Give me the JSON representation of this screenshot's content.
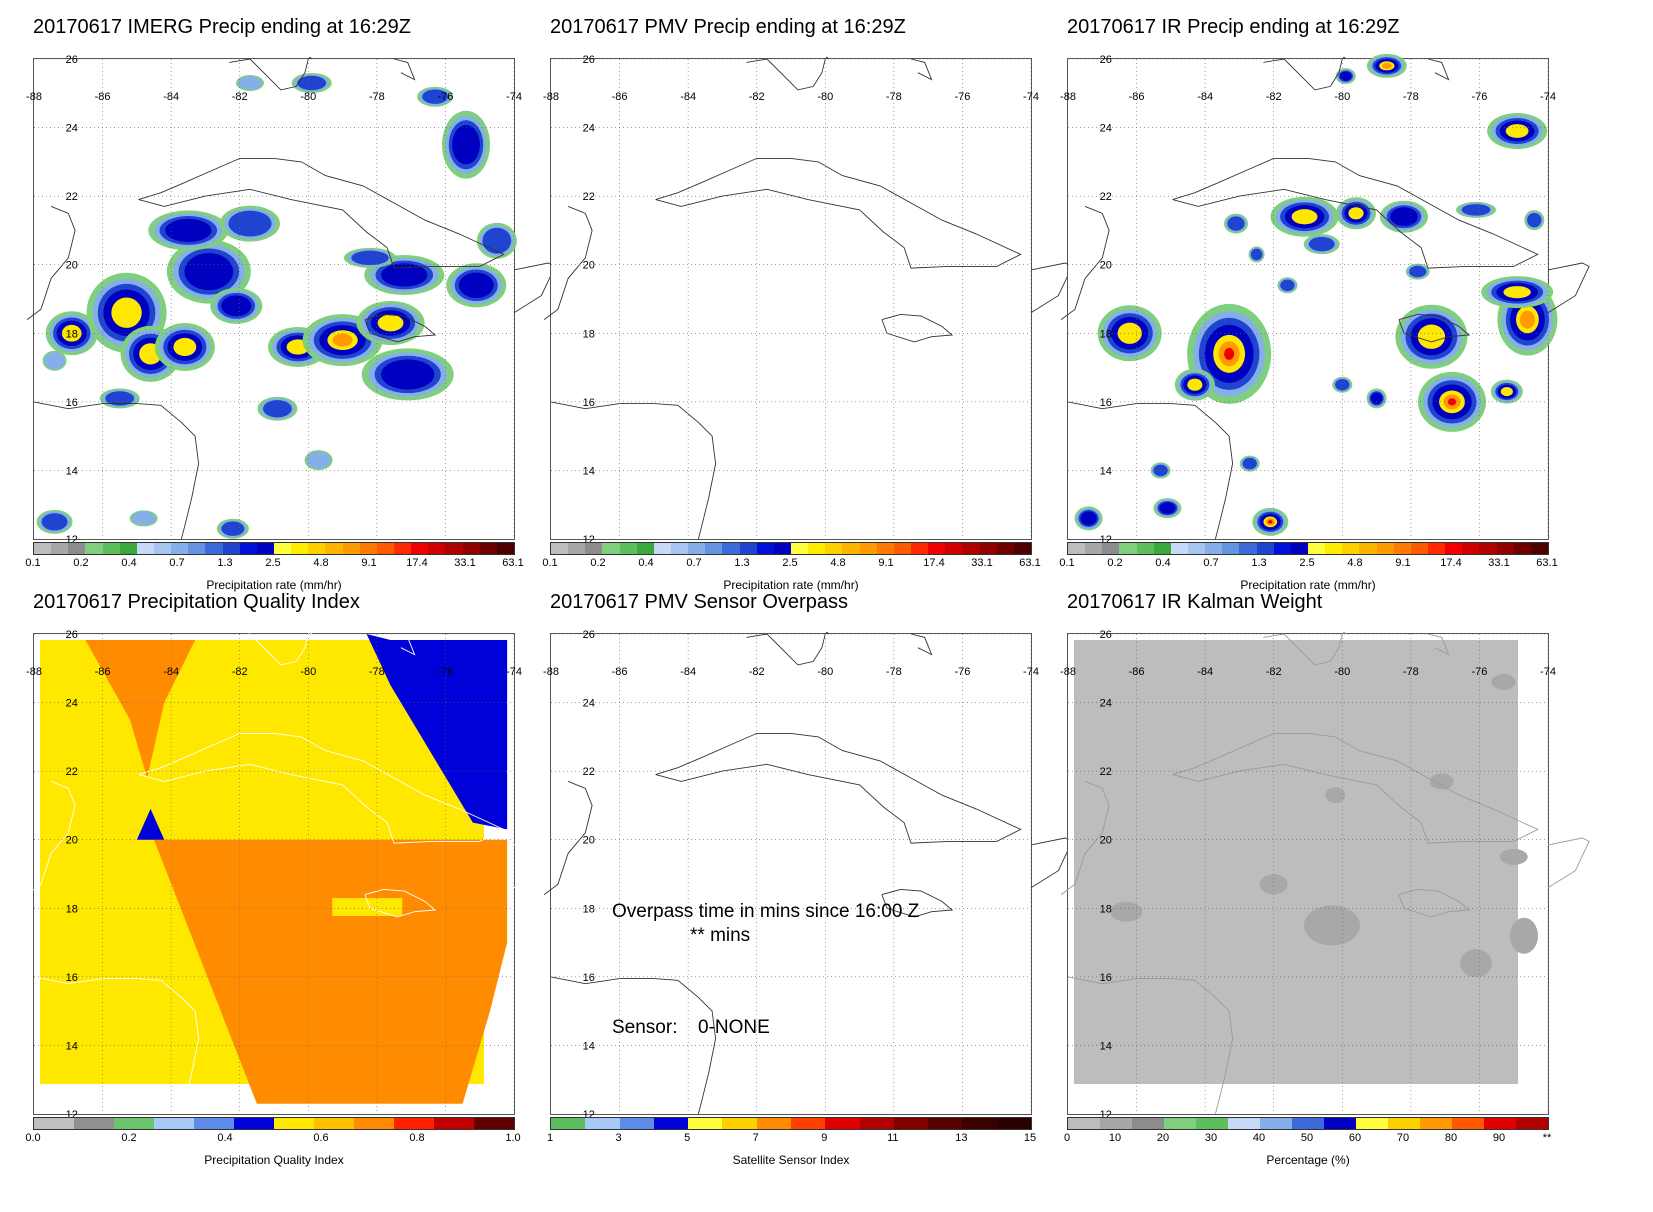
{
  "panels": [
    {
      "id": "p1",
      "title": "20170617 IMERG Precip ending at 16:29Z",
      "colorbar_label": "Precipitation rate (mm/hr)",
      "colorbar_ticks": [
        "0.1",
        "0.2",
        "0.4",
        "0.7",
        "1.3",
        "2.5",
        "4.8",
        "9.1",
        "17.4",
        "33.1",
        "63.1"
      ],
      "scale": "precip"
    },
    {
      "id": "p2",
      "title": "20170617 PMV Precip ending at 16:29Z",
      "colorbar_label": "Precipitation rate (mm/hr)",
      "colorbar_ticks": [
        "0.1",
        "0.2",
        "0.4",
        "0.7",
        "1.3",
        "2.5",
        "4.8",
        "9.1",
        "17.4",
        "33.1",
        "63.1"
      ],
      "scale": "precip"
    },
    {
      "id": "p3",
      "title": "20170617 IR Precip ending at 16:29Z",
      "colorbar_label": "Precipitation rate (mm/hr)",
      "colorbar_ticks": [
        "0.1",
        "0.2",
        "0.4",
        "0.7",
        "1.3",
        "2.5",
        "4.8",
        "9.1",
        "17.4",
        "33.1",
        "63.1"
      ],
      "scale": "precip"
    },
    {
      "id": "p4",
      "title": "20170617 Precipitation Quality Index",
      "colorbar_label": "Precipitation Quality Index",
      "colorbar_ticks": [
        "0.0",
        "0.2",
        "0.4",
        "0.6",
        "0.8",
        "1.0"
      ],
      "scale": "quality"
    },
    {
      "id": "p5",
      "title": "20170617 PMV Sensor Overpass",
      "colorbar_label": "Satellite Sensor Index",
      "colorbar_ticks": [
        "1",
        "3",
        "5",
        "7",
        "9",
        "11",
        "13",
        "15"
      ],
      "scale": "sensor",
      "overpass_text": "Overpass time in mins since 16:00 Z",
      "overpass_value": "** mins",
      "sensor_label": "Sensor:",
      "sensor_value": "0-NONE"
    },
    {
      "id": "p6",
      "title": "20170617 IR Kalman Weight",
      "colorbar_label": "Percentage (%)",
      "colorbar_ticks": [
        "0",
        "10",
        "20",
        "30",
        "40",
        "50",
        "60",
        "70",
        "80",
        "90",
        "**"
      ],
      "scale": "percent"
    }
  ],
  "axes": {
    "lon_labels": [
      "-88",
      "-86",
      "-84",
      "-82",
      "-80",
      "-78",
      "-76",
      "-74"
    ],
    "lat_labels": [
      "26",
      "24",
      "22",
      "20",
      "18",
      "16",
      "14",
      "12"
    ],
    "lon_range": [
      -88,
      -74
    ],
    "lat_range": [
      12,
      26
    ]
  },
  "colors": {
    "precip": [
      "#bdbdbd",
      "#a6a6a6",
      "#8c8c8c",
      "#7fcf7f",
      "#5cbf5c",
      "#3aa83a",
      "#c8d8f8",
      "#a8c4f0",
      "#86aee8",
      "#6494e0",
      "#3c6ad8",
      "#1e44d0",
      "#0010d8",
      "#0000c0",
      "#ffff40",
      "#ffec00",
      "#ffd000",
      "#ffb400",
      "#ff9a00",
      "#ff7a00",
      "#ff5a00",
      "#ff2a00",
      "#f00000",
      "#d00000",
      "#b00000",
      "#900000",
      "#6e0000",
      "#4e0000"
    ],
    "quality": [
      "#c0c0c0",
      "#909090",
      "#6cc46c",
      "#a8c8f8",
      "#5c8ce8",
      "#0000d8",
      "#ffe800",
      "#ffc000",
      "#ff8c00",
      "#ff2000",
      "#c00000",
      "#600000"
    ],
    "sensor": [
      "#5cbf5c",
      "#a8c8f8",
      "#5c8ce8",
      "#0000d8",
      "#ffff40",
      "#ffd000",
      "#ff8c00",
      "#ff4000",
      "#e00000",
      "#b00000",
      "#800000",
      "#5a0000",
      "#3a0000",
      "#2a0000"
    ],
    "percent": [
      "#bdbdbd",
      "#a6a6a6",
      "#8c8c8c",
      "#7fcf7f",
      "#5cbf5c",
      "#c8d8f8",
      "#86aee8",
      "#3c6ad8",
      "#0000c0",
      "#ffff40",
      "#ffd000",
      "#ff9a00",
      "#ff5a00",
      "#e00000",
      "#b00000"
    ]
  }
}
